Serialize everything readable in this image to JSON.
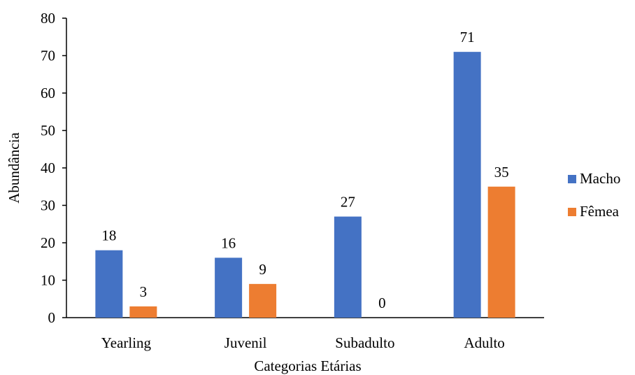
{
  "chart_data": {
    "type": "bar",
    "title": "",
    "xlabel": "Categorias Etárias",
    "ylabel": "Abundância",
    "categories": [
      "Yearling",
      "Juvenil",
      "Subadulto",
      "Adulto"
    ],
    "ylim": [
      0,
      80
    ],
    "yticks": [
      "0",
      "10",
      "20",
      "30",
      "40",
      "50",
      "60",
      "70",
      "80"
    ],
    "grid": false,
    "legend_position": "right",
    "series": [
      {
        "name": "Macho",
        "color": "#4472C4",
        "values": [
          18,
          16,
          27,
          71
        ]
      },
      {
        "name": "Fêmea",
        "color": "#ED7D31",
        "values": [
          3,
          9,
          0,
          35
        ]
      }
    ]
  }
}
